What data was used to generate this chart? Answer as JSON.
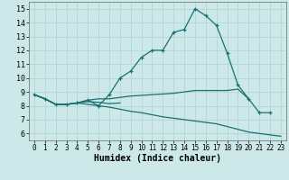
{
  "xlabel": "Humidex (Indice chaleur)",
  "xlim": [
    -0.5,
    23.5
  ],
  "ylim": [
    5.5,
    15.5
  ],
  "yticks": [
    6,
    7,
    8,
    9,
    10,
    11,
    12,
    13,
    14,
    15
  ],
  "xticks": [
    0,
    1,
    2,
    3,
    4,
    5,
    6,
    7,
    8,
    9,
    10,
    11,
    12,
    13,
    14,
    15,
    16,
    17,
    18,
    19,
    20,
    21,
    22,
    23
  ],
  "bg_color": "#cde8e8",
  "grid_color": "#b8d8d8",
  "line_color": "#1a7070",
  "series": [
    {
      "x": [
        0,
        1,
        2,
        3,
        4,
        5,
        6,
        7,
        8,
        9,
        10,
        11,
        12,
        13,
        14,
        15,
        16,
        17,
        18,
        19,
        20,
        21,
        22
      ],
      "y": [
        8.8,
        8.5,
        8.1,
        8.1,
        8.2,
        8.4,
        8.0,
        8.8,
        10.0,
        10.5,
        11.5,
        12.0,
        12.0,
        13.3,
        13.5,
        15.0,
        14.5,
        13.8,
        11.8,
        9.5,
        8.5,
        7.5,
        7.5
      ],
      "marker": "+"
    },
    {
      "x": [
        0,
        1,
        2,
        3,
        4,
        5,
        6,
        7,
        8,
        9,
        10,
        11,
        12,
        13,
        14,
        15,
        16,
        17,
        18,
        19,
        20
      ],
      "y": [
        8.8,
        8.5,
        8.1,
        8.1,
        8.2,
        8.4,
        8.5,
        8.5,
        8.6,
        8.7,
        8.75,
        8.8,
        8.85,
        8.9,
        9.0,
        9.1,
        9.1,
        9.1,
        9.1,
        9.2,
        8.5
      ],
      "marker": null
    },
    {
      "x": [
        0,
        1,
        2,
        3,
        4,
        5,
        6,
        7,
        8,
        9,
        10,
        11,
        12,
        13,
        14,
        15,
        16,
        17,
        18,
        19,
        20,
        23
      ],
      "y": [
        8.8,
        8.5,
        8.1,
        8.1,
        8.2,
        8.1,
        8.0,
        7.9,
        7.75,
        7.6,
        7.5,
        7.35,
        7.2,
        7.1,
        7.0,
        6.9,
        6.8,
        6.7,
        6.5,
        6.3,
        6.1,
        5.8
      ],
      "marker": null
    },
    {
      "x": [
        0,
        1,
        2,
        3,
        4,
        5,
        6,
        7,
        8
      ],
      "y": [
        8.8,
        8.5,
        8.1,
        8.1,
        8.2,
        8.3,
        8.25,
        8.15,
        8.2
      ],
      "marker": null
    }
  ]
}
